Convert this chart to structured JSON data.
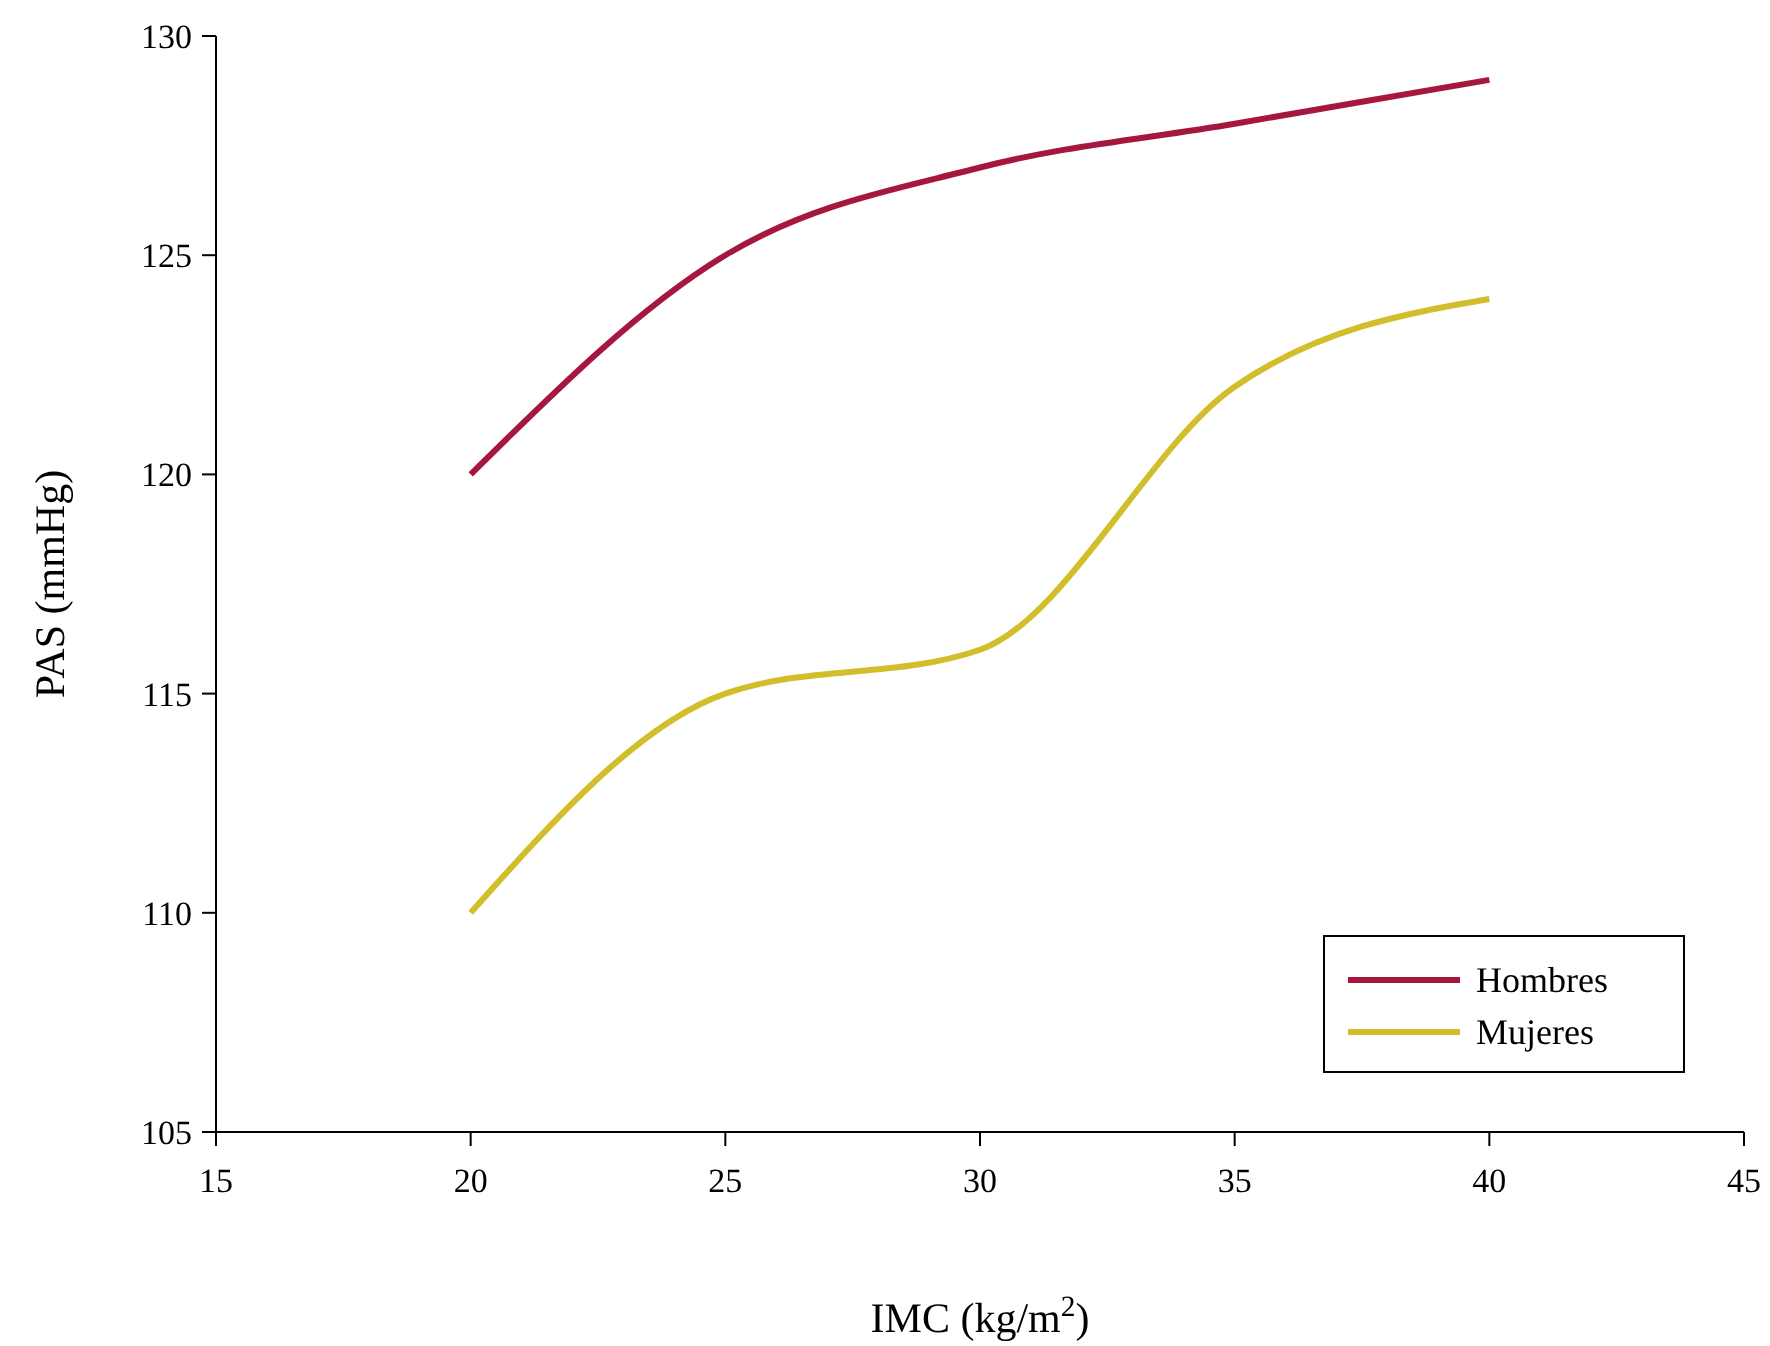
{
  "chart_data": {
    "type": "line",
    "xlabel": "IMC (kg/m$^{2}$)",
    "ylabel": "PAS (mmHg)",
    "x": [
      20,
      25,
      30,
      35,
      40
    ],
    "series": [
      {
        "name": "Hombres",
        "color": "#a6173f",
        "values": [
          120,
          125,
          127,
          128,
          129
        ]
      },
      {
        "name": "Mujeres",
        "color": "#d2bd2a",
        "values": [
          110,
          115,
          116,
          122,
          124
        ]
      }
    ],
    "xlim": [
      15,
      45
    ],
    "xticks": [
      15,
      20,
      25,
      30,
      35,
      40,
      45
    ],
    "ylim": [
      105,
      130
    ],
    "yticks": [
      105,
      110,
      115,
      120,
      125,
      130
    ],
    "grid": false,
    "legend": "bottom right",
    "marker": "none",
    "line_style": "solid"
  }
}
